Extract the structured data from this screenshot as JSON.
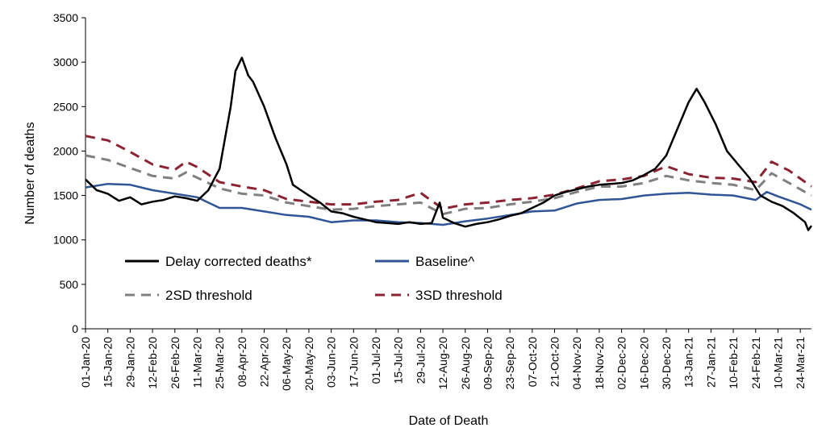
{
  "chart_data": {
    "type": "line",
    "title": "",
    "xlabel": "Date of Death",
    "ylabel": "Number of deaths",
    "ylim": [
      0,
      3500
    ],
    "yticks": [
      0,
      500,
      1000,
      1500,
      2000,
      2500,
      3000,
      3500
    ],
    "xlim": [
      "2020-01-01",
      "2021-03-31"
    ],
    "x_tick_labels": [
      "01-Jan-20",
      "15-Jan-20",
      "29-Jan-20",
      "12-Feb-20",
      "26-Feb-20",
      "11-Mar-20",
      "25-Mar-20",
      "08-Apr-20",
      "22-Apr-20",
      "06-May-20",
      "20-May-20",
      "03-Jun-20",
      "17-Jun-20",
      "01-Jul-20",
      "15-Jul-20",
      "29-Jul-20",
      "12-Aug-20",
      "26-Aug-20",
      "09-Sep-20",
      "23-Sep-20",
      "07-Oct-20",
      "21-Oct-20",
      "04-Nov-20",
      "18-Nov-20",
      "02-Dec-20",
      "16-Dec-20",
      "30-Dec-20",
      "13-Jan-21",
      "27-Jan-21",
      "10-Feb-21",
      "24-Feb-21",
      "10-Mar-21",
      "24-Mar-21"
    ],
    "grid": false,
    "legend_placement": "lower-left, inside plot",
    "series": [
      {
        "name": "Delay corrected deaths*",
        "color": "#000000",
        "style": "solid",
        "points": [
          [
            "2020-01-01",
            1680
          ],
          [
            "2020-01-08",
            1560
          ],
          [
            "2020-01-15",
            1520
          ],
          [
            "2020-01-22",
            1440
          ],
          [
            "2020-01-29",
            1480
          ],
          [
            "2020-02-05",
            1400
          ],
          [
            "2020-02-12",
            1430
          ],
          [
            "2020-02-19",
            1450
          ],
          [
            "2020-02-26",
            1490
          ],
          [
            "2020-03-04",
            1470
          ],
          [
            "2020-03-11",
            1440
          ],
          [
            "2020-03-18",
            1560
          ],
          [
            "2020-03-25",
            1800
          ],
          [
            "2020-04-01",
            2500
          ],
          [
            "2020-04-04",
            2900
          ],
          [
            "2020-04-08",
            3050
          ],
          [
            "2020-04-12",
            2850
          ],
          [
            "2020-04-15",
            2780
          ],
          [
            "2020-04-22",
            2500
          ],
          [
            "2020-04-29",
            2150
          ],
          [
            "2020-05-06",
            1850
          ],
          [
            "2020-05-10",
            1620
          ],
          [
            "2020-05-15",
            1560
          ],
          [
            "2020-05-20",
            1500
          ],
          [
            "2020-05-27",
            1420
          ],
          [
            "2020-06-03",
            1320
          ],
          [
            "2020-06-10",
            1300
          ],
          [
            "2020-06-17",
            1260
          ],
          [
            "2020-06-24",
            1230
          ],
          [
            "2020-07-01",
            1200
          ],
          [
            "2020-07-08",
            1190
          ],
          [
            "2020-07-15",
            1180
          ],
          [
            "2020-07-22",
            1200
          ],
          [
            "2020-07-29",
            1180
          ],
          [
            "2020-08-05",
            1190
          ],
          [
            "2020-08-10",
            1420
          ],
          [
            "2020-08-12",
            1250
          ],
          [
            "2020-08-19",
            1190
          ],
          [
            "2020-08-26",
            1150
          ],
          [
            "2020-09-02",
            1180
          ],
          [
            "2020-09-09",
            1200
          ],
          [
            "2020-09-16",
            1230
          ],
          [
            "2020-09-23",
            1270
          ],
          [
            "2020-09-30",
            1300
          ],
          [
            "2020-10-07",
            1360
          ],
          [
            "2020-10-14",
            1420
          ],
          [
            "2020-10-21",
            1500
          ],
          [
            "2020-10-28",
            1540
          ],
          [
            "2020-11-04",
            1570
          ],
          [
            "2020-11-11",
            1600
          ],
          [
            "2020-11-18",
            1620
          ],
          [
            "2020-11-25",
            1630
          ],
          [
            "2020-12-02",
            1640
          ],
          [
            "2020-12-09",
            1670
          ],
          [
            "2020-12-16",
            1730
          ],
          [
            "2020-12-23",
            1800
          ],
          [
            "2020-12-30",
            1950
          ],
          [
            "2021-01-06",
            2250
          ],
          [
            "2021-01-13",
            2550
          ],
          [
            "2021-01-18",
            2700
          ],
          [
            "2021-01-23",
            2550
          ],
          [
            "2021-01-30",
            2300
          ],
          [
            "2021-02-06",
            2000
          ],
          [
            "2021-02-13",
            1850
          ],
          [
            "2021-02-20",
            1700
          ],
          [
            "2021-02-27",
            1500
          ],
          [
            "2021-03-06",
            1430
          ],
          [
            "2021-03-13",
            1380
          ],
          [
            "2021-03-20",
            1300
          ],
          [
            "2021-03-27",
            1200
          ],
          [
            "2021-03-29",
            1110
          ],
          [
            "2021-03-31",
            1160
          ]
        ]
      },
      {
        "name": "Baseline^",
        "color": "#2f5597",
        "style": "solid",
        "points": [
          [
            "2020-01-01",
            1590
          ],
          [
            "2020-01-15",
            1630
          ],
          [
            "2020-01-29",
            1620
          ],
          [
            "2020-02-12",
            1560
          ],
          [
            "2020-02-26",
            1520
          ],
          [
            "2020-03-11",
            1480
          ],
          [
            "2020-03-25",
            1360
          ],
          [
            "2020-04-08",
            1360
          ],
          [
            "2020-04-22",
            1320
          ],
          [
            "2020-05-06",
            1280
          ],
          [
            "2020-05-20",
            1260
          ],
          [
            "2020-06-03",
            1200
          ],
          [
            "2020-06-17",
            1220
          ],
          [
            "2020-07-01",
            1220
          ],
          [
            "2020-07-15",
            1200
          ],
          [
            "2020-07-29",
            1190
          ],
          [
            "2020-08-12",
            1170
          ],
          [
            "2020-08-26",
            1210
          ],
          [
            "2020-09-09",
            1240
          ],
          [
            "2020-09-23",
            1280
          ],
          [
            "2020-10-07",
            1320
          ],
          [
            "2020-10-21",
            1330
          ],
          [
            "2020-11-04",
            1410
          ],
          [
            "2020-11-18",
            1450
          ],
          [
            "2020-12-02",
            1460
          ],
          [
            "2020-12-16",
            1500
          ],
          [
            "2020-12-30",
            1520
          ],
          [
            "2021-01-13",
            1530
          ],
          [
            "2021-01-27",
            1510
          ],
          [
            "2021-02-10",
            1500
          ],
          [
            "2021-02-24",
            1450
          ],
          [
            "2021-03-03",
            1540
          ],
          [
            "2021-03-10",
            1490
          ],
          [
            "2021-03-24",
            1400
          ],
          [
            "2021-03-31",
            1340
          ]
        ]
      },
      {
        "name": "2SD threshold",
        "color": "#808080",
        "style": "dashed",
        "points": [
          [
            "2020-01-01",
            1950
          ],
          [
            "2020-01-15",
            1900
          ],
          [
            "2020-01-29",
            1810
          ],
          [
            "2020-02-12",
            1720
          ],
          [
            "2020-02-26",
            1690
          ],
          [
            "2020-03-04",
            1760
          ],
          [
            "2020-03-11",
            1700
          ],
          [
            "2020-03-25",
            1580
          ],
          [
            "2020-04-08",
            1520
          ],
          [
            "2020-04-22",
            1500
          ],
          [
            "2020-05-06",
            1420
          ],
          [
            "2020-05-20",
            1380
          ],
          [
            "2020-06-03",
            1340
          ],
          [
            "2020-06-17",
            1350
          ],
          [
            "2020-07-01",
            1380
          ],
          [
            "2020-07-15",
            1400
          ],
          [
            "2020-07-29",
            1420
          ],
          [
            "2020-08-12",
            1290
          ],
          [
            "2020-08-26",
            1350
          ],
          [
            "2020-09-09",
            1360
          ],
          [
            "2020-09-23",
            1400
          ],
          [
            "2020-10-07",
            1430
          ],
          [
            "2020-10-21",
            1470
          ],
          [
            "2020-11-04",
            1540
          ],
          [
            "2020-11-18",
            1600
          ],
          [
            "2020-12-02",
            1600
          ],
          [
            "2020-12-16",
            1640
          ],
          [
            "2020-12-30",
            1720
          ],
          [
            "2021-01-13",
            1670
          ],
          [
            "2021-01-27",
            1640
          ],
          [
            "2021-02-10",
            1620
          ],
          [
            "2021-02-24",
            1560
          ],
          [
            "2021-03-06",
            1750
          ],
          [
            "2021-03-17",
            1640
          ],
          [
            "2021-03-31",
            1500
          ]
        ]
      },
      {
        "name": "3SD threshold",
        "color": "#8b2332",
        "style": "dashed",
        "points": [
          [
            "2020-01-01",
            2170
          ],
          [
            "2020-01-15",
            2120
          ],
          [
            "2020-01-29",
            1990
          ],
          [
            "2020-02-12",
            1850
          ],
          [
            "2020-02-26",
            1790
          ],
          [
            "2020-03-04",
            1880
          ],
          [
            "2020-03-11",
            1820
          ],
          [
            "2020-03-25",
            1650
          ],
          [
            "2020-04-08",
            1600
          ],
          [
            "2020-04-22",
            1560
          ],
          [
            "2020-05-06",
            1460
          ],
          [
            "2020-05-20",
            1430
          ],
          [
            "2020-06-03",
            1400
          ],
          [
            "2020-06-17",
            1400
          ],
          [
            "2020-07-01",
            1430
          ],
          [
            "2020-07-15",
            1450
          ],
          [
            "2020-07-29",
            1530
          ],
          [
            "2020-08-12",
            1350
          ],
          [
            "2020-08-26",
            1400
          ],
          [
            "2020-09-09",
            1420
          ],
          [
            "2020-09-23",
            1450
          ],
          [
            "2020-10-07",
            1470
          ],
          [
            "2020-10-21",
            1510
          ],
          [
            "2020-11-04",
            1580
          ],
          [
            "2020-11-18",
            1660
          ],
          [
            "2020-12-02",
            1680
          ],
          [
            "2020-12-16",
            1720
          ],
          [
            "2020-12-30",
            1830
          ],
          [
            "2021-01-13",
            1740
          ],
          [
            "2021-01-27",
            1700
          ],
          [
            "2021-02-10",
            1690
          ],
          [
            "2021-02-24",
            1650
          ],
          [
            "2021-03-06",
            1880
          ],
          [
            "2021-03-17",
            1780
          ],
          [
            "2021-03-31",
            1600
          ]
        ]
      }
    ]
  }
}
